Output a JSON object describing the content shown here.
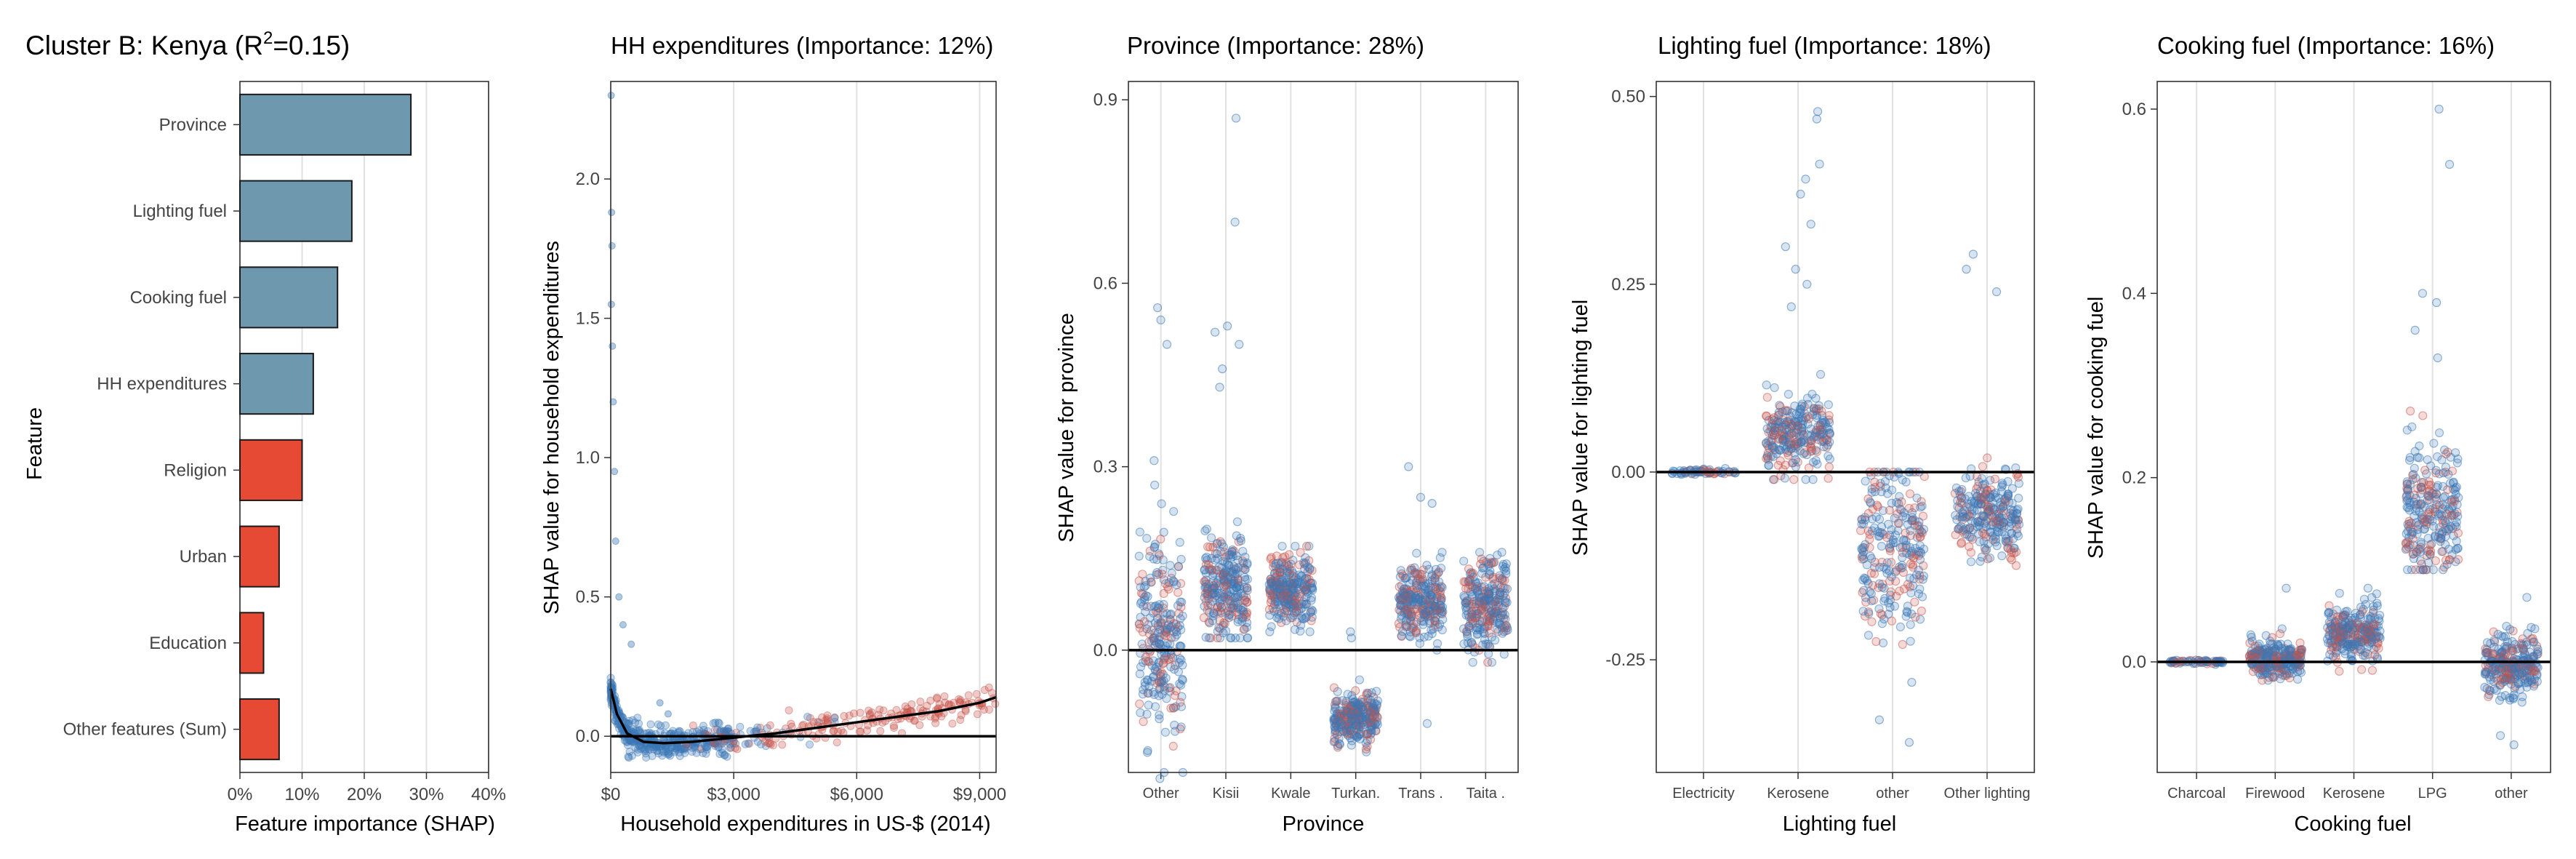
{
  "figure_title": {
    "prefix": "Cluster B: Kenya (R",
    "sup": "2",
    "suffix": "=0.15)"
  },
  "colors": {
    "blue": "#3a78b5",
    "red": "#c8534a",
    "bar_blue": "#6e98ad",
    "bar_red": "#e64a35",
    "grid": "#e1e1e1",
    "frame": "#333333"
  },
  "chart_data": [
    {
      "type": "bar",
      "orientation": "horizontal",
      "title": "",
      "ylabel": "Feature",
      "xlabel": "Feature importance (SHAP)",
      "categories": [
        "Province",
        "Lighting fuel",
        "Cooking fuel",
        "HH expenditures",
        "Religion",
        "Urban",
        "Education",
        "Other features (Sum)"
      ],
      "values": [
        0.275,
        0.18,
        0.157,
        0.118,
        0.1,
        0.063,
        0.038,
        0.063
      ],
      "bar_colors": [
        "blue",
        "blue",
        "blue",
        "blue",
        "red",
        "red",
        "red",
        "red"
      ],
      "xlim": [
        0,
        0.4
      ],
      "xticks": [
        0,
        0.1,
        0.2,
        0.3,
        0.4
      ],
      "xtick_labels": [
        "0%",
        "10%",
        "20%",
        "30%",
        "40%"
      ],
      "grid": "vertical"
    },
    {
      "type": "scatter",
      "title": "HH expenditures (Importance: 12%)",
      "xlabel": "Household expenditures in US-$ (2014)",
      "ylabel": "SHAP value for household expenditures",
      "xlim": [
        0,
        9400
      ],
      "ylim": [
        -0.13,
        2.35
      ],
      "xticks": [
        0,
        3000,
        6000,
        9000
      ],
      "xtick_labels": [
        "$0",
        "$3,000",
        "$6,000",
        "$9,000"
      ],
      "yticks": [
        0,
        0.5,
        1,
        1.5,
        2
      ],
      "ytick_labels": [
        "0.0",
        "0.5",
        "1.0",
        "1.5",
        "2.0"
      ],
      "zero_line": 0,
      "trend_line": {
        "x": [
          0,
          150,
          400,
          800,
          1300,
          2000,
          3000,
          4000,
          5000,
          6000,
          7000,
          8000,
          9000,
          9400
        ],
        "y": [
          0.17,
          0.08,
          0.01,
          -0.02,
          -0.025,
          -0.02,
          -0.005,
          0.01,
          0.03,
          0.05,
          0.07,
          0.09,
          0.12,
          0.14
        ]
      },
      "outliers": [
        [
          10,
          2.3
        ],
        [
          20,
          1.88
        ],
        [
          30,
          1.76
        ],
        [
          15,
          1.55
        ],
        [
          40,
          1.4
        ],
        [
          60,
          1.2
        ],
        [
          90,
          0.95
        ],
        [
          120,
          0.7
        ],
        [
          200,
          0.5
        ],
        [
          300,
          0.4
        ],
        [
          500,
          0.33
        ],
        [
          1200,
          0.12
        ],
        [
          1400,
          0.08
        ]
      ]
    },
    {
      "type": "scatter",
      "title": "Province (Importance: 28%)",
      "xlabel": "Province",
      "ylabel": "SHAP value for province",
      "categories": [
        "Other",
        "Kisii",
        "Kwale",
        "Turkan.",
        "Trans .",
        "Taita ."
      ],
      "ylim": [
        -0.2,
        0.93
      ],
      "yticks": [
        0,
        0.3,
        0.6,
        0.9
      ],
      "ytick_labels": [
        "0.0",
        "0.3",
        "0.6",
        "0.9"
      ],
      "zero_line": 0,
      "groups": [
        {
          "center": 0.02,
          "spread": 0.08,
          "range": [
            -0.2,
            0.32
          ]
        },
        {
          "center": 0.1,
          "spread": 0.04,
          "range": [
            0.02,
            0.21
          ]
        },
        {
          "center": 0.1,
          "spread": 0.03,
          "range": [
            0.03,
            0.17
          ]
        },
        {
          "center": -0.11,
          "spread": 0.02,
          "range": [
            -0.18,
            -0.03
          ]
        },
        {
          "center": 0.08,
          "spread": 0.03,
          "range": [
            0.0,
            0.16
          ]
        },
        {
          "center": 0.07,
          "spread": 0.04,
          "range": [
            -0.02,
            0.16
          ]
        }
      ],
      "outliers": [
        [
          0,
          0.56
        ],
        [
          0,
          0.54
        ],
        [
          0,
          0.5
        ],
        [
          0,
          0.31
        ],
        [
          0,
          0.27
        ],
        [
          0,
          -0.21
        ],
        [
          1,
          0.87
        ],
        [
          1,
          0.7
        ],
        [
          1,
          0.53
        ],
        [
          1,
          0.52
        ],
        [
          1,
          0.5
        ],
        [
          1,
          0.46
        ],
        [
          1,
          0.43
        ],
        [
          3,
          0.03
        ],
        [
          3,
          0.02
        ],
        [
          4,
          0.3
        ],
        [
          4,
          0.25
        ],
        [
          4,
          0.24
        ],
        [
          4,
          -0.12
        ],
        [
          5,
          0.15
        ]
      ]
    },
    {
      "type": "scatter",
      "title": "Lighting fuel (Importance: 18%)",
      "xlabel": "Lighting fuel",
      "ylabel": "SHAP value for lighting fuel",
      "categories": [
        "Electricity",
        "Kerosene",
        "other",
        "Other lighting"
      ],
      "ylim": [
        -0.4,
        0.52
      ],
      "yticks": [
        -0.25,
        0,
        0.25,
        0.5
      ],
      "ytick_labels": [
        "-0.25",
        "0.00",
        "0.25",
        "0.50"
      ],
      "zero_line": 0,
      "groups": [
        {
          "center": 0.0,
          "spread": 0.002,
          "range": [
            -0.005,
            0.005
          ]
        },
        {
          "center": 0.05,
          "spread": 0.025,
          "range": [
            -0.01,
            0.2
          ]
        },
        {
          "center": -0.1,
          "spread": 0.06,
          "range": [
            -0.3,
            0.0
          ]
        },
        {
          "center": -0.06,
          "spread": 0.03,
          "range": [
            -0.18,
            0.04
          ]
        }
      ],
      "outliers": [
        [
          1,
          0.48
        ],
        [
          1,
          0.47
        ],
        [
          1,
          0.41
        ],
        [
          1,
          0.39
        ],
        [
          1,
          0.37
        ],
        [
          1,
          0.33
        ],
        [
          1,
          0.3
        ],
        [
          1,
          0.27
        ],
        [
          1,
          0.25
        ],
        [
          1,
          0.22
        ],
        [
          2,
          -0.33
        ],
        [
          2,
          -0.36
        ],
        [
          2,
          -0.28
        ],
        [
          3,
          0.29
        ],
        [
          3,
          0.27
        ],
        [
          3,
          0.24
        ]
      ]
    },
    {
      "type": "scatter",
      "title": "Cooking fuel (Importance: 16%)",
      "xlabel": "Cooking fuel",
      "ylabel": "SHAP value for cooking fuel",
      "categories": [
        "Charcoal",
        "Firewood",
        "Kerosene",
        "LPG",
        "other"
      ],
      "ylim": [
        -0.12,
        0.63
      ],
      "yticks": [
        0,
        0.2,
        0.4,
        0.6
      ],
      "ytick_labels": [
        "0.0",
        "0.2",
        "0.4",
        "0.6"
      ],
      "zero_line": 0,
      "groups": [
        {
          "center": 0.0,
          "spread": 0.001,
          "range": [
            -0.003,
            0.003
          ]
        },
        {
          "center": 0.003,
          "spread": 0.01,
          "range": [
            -0.02,
            0.04
          ]
        },
        {
          "center": 0.03,
          "spread": 0.015,
          "range": [
            -0.02,
            0.08
          ]
        },
        {
          "center": 0.16,
          "spread": 0.04,
          "range": [
            0.1,
            0.4
          ]
        },
        {
          "center": -0.003,
          "spread": 0.015,
          "range": [
            -0.08,
            0.06
          ]
        }
      ],
      "outliers": [
        [
          1,
          0.08
        ],
        [
          2,
          0.08
        ],
        [
          3,
          0.6
        ],
        [
          3,
          0.54
        ],
        [
          3,
          0.4
        ],
        [
          3,
          0.39
        ],
        [
          3,
          0.36
        ],
        [
          3,
          0.33
        ],
        [
          4,
          -0.08
        ],
        [
          4,
          -0.09
        ],
        [
          4,
          0.07
        ]
      ]
    }
  ]
}
